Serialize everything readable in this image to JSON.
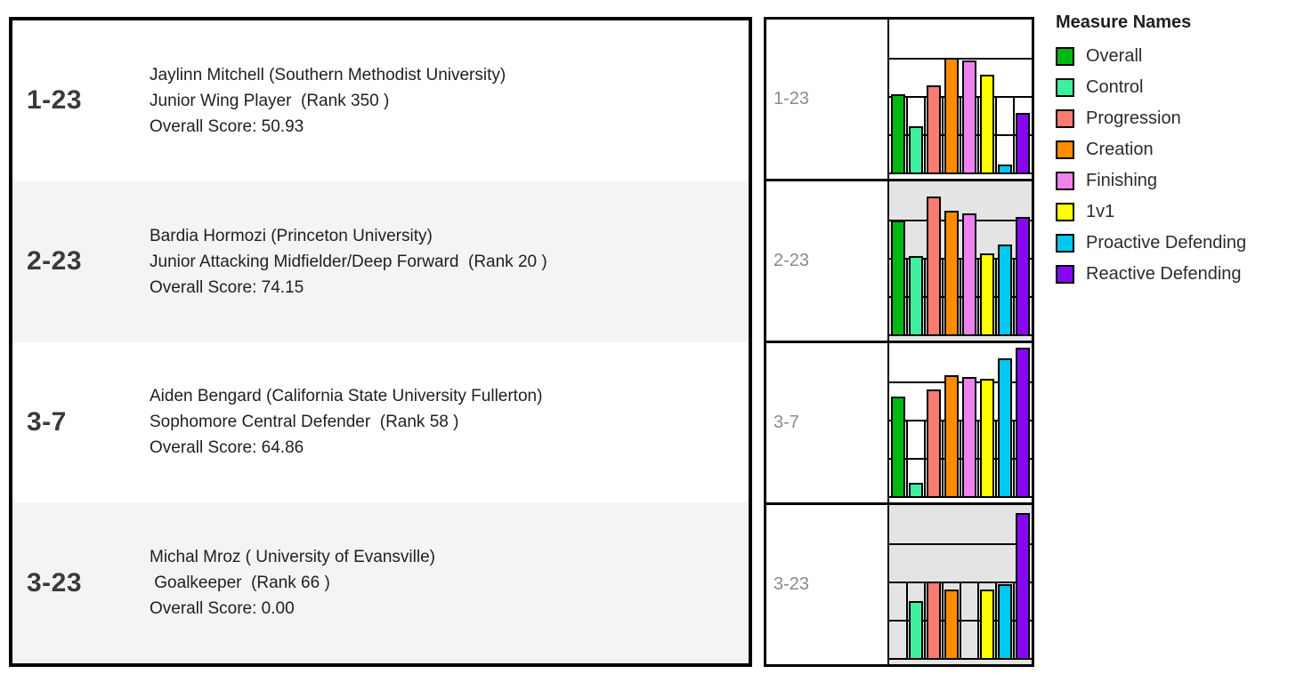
{
  "left_panel": {
    "rows": [
      {
        "id": "1-23",
        "name_line": "Jaylinn Mitchell (Southern Methodist University)",
        "position_line": "Junior Wing Player  (Rank 350 )",
        "score_line": "Overall Score: 50.93"
      },
      {
        "id": "2-23",
        "name_line": "Bardia Hormozi (Princeton University)",
        "position_line": "Junior Attacking Midfielder/Deep Forward  (Rank 20 )",
        "score_line": "Overall Score: 74.15"
      },
      {
        "id": "3-7",
        "name_line": "Aiden Bengard (California State University Fullerton)",
        "position_line": "Sophomore Central Defender  (Rank 58 )",
        "score_line": "Overall Score: 64.86"
      },
      {
        "id": "3-23",
        "name_line": "Michal Mroz ( University of Evansville)",
        "position_line": " Goalkeeper  (Rank 66 )",
        "score_line": "Overall Score: 0.00"
      }
    ]
  },
  "chart_panel": {
    "row_labels": [
      "1-23",
      "2-23",
      "3-7",
      "3-23"
    ]
  },
  "legend": {
    "title": "Measure Names",
    "items": [
      {
        "label": "Overall",
        "color": "#00b80f"
      },
      {
        "label": "Control",
        "color": "#3df0a0"
      },
      {
        "label": "Progression",
        "color": "#fa7c70"
      },
      {
        "label": "Creation",
        "color": "#ff8c00"
      },
      {
        "label": "Finishing",
        "color": "#ee82ee"
      },
      {
        "label": "1v1",
        "color": "#ffff00"
      },
      {
        "label": "Proactive Defending",
        "color": "#00c8ee"
      },
      {
        "label": "Reactive Defending",
        "color": "#8807f0"
      }
    ]
  },
  "chart_data": {
    "type": "bar",
    "title": "Measure Names",
    "categories": [
      "Overall",
      "Control",
      "Progression",
      "Creation",
      "Finishing",
      "1v1",
      "Proactive Defending",
      "Reactive Defending"
    ],
    "ylim": [
      0,
      100
    ],
    "gridlines": [
      25,
      50,
      75
    ],
    "grid": true,
    "legend_position": "right",
    "rows": [
      {
        "id": "1-23",
        "values": [
          50.93,
          30,
          57,
          75,
          73,
          64,
          5,
          39
        ]
      },
      {
        "id": "2-23",
        "values": [
          74.15,
          51,
          90,
          81,
          79,
          53,
          59,
          77
        ]
      },
      {
        "id": "3-7",
        "values": [
          64.86,
          9,
          70,
          79,
          78,
          77,
          90,
          97
        ]
      },
      {
        "id": "3-23",
        "values": [
          0,
          37,
          50,
          45,
          0,
          45,
          48,
          95
        ]
      }
    ]
  }
}
